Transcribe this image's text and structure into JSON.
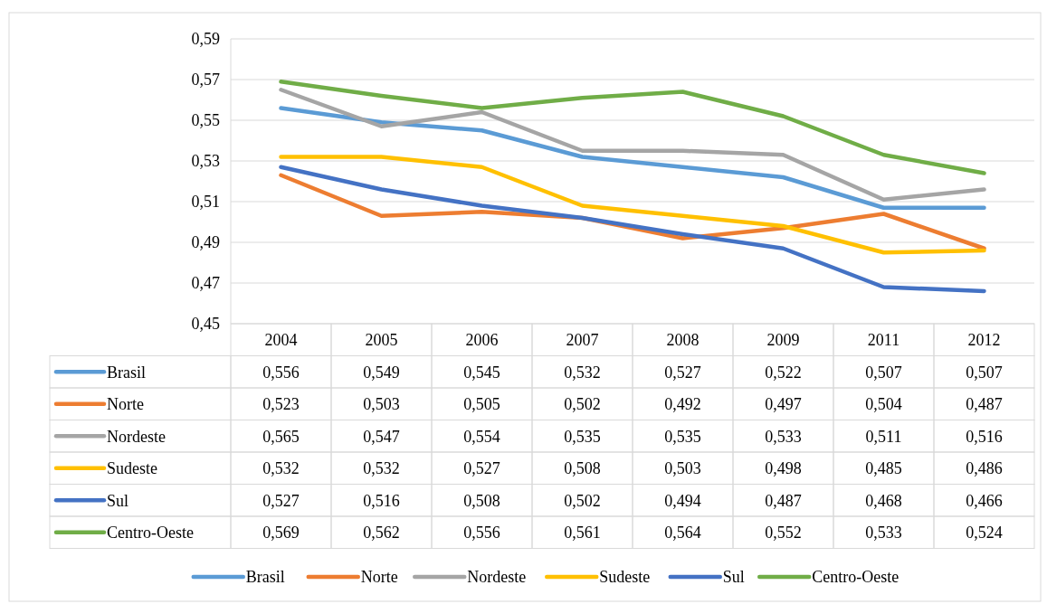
{
  "chart_data": {
    "type": "line",
    "categories": [
      "2004",
      "2005",
      "2006",
      "2007",
      "2008",
      "2009",
      "2011",
      "2012"
    ],
    "ylim": [
      0.45,
      0.59
    ],
    "yticks": [
      {
        "value": 0.45,
        "label": "0,45"
      },
      {
        "value": 0.47,
        "label": "0,47"
      },
      {
        "value": 0.49,
        "label": "0,49"
      },
      {
        "value": 0.51,
        "label": "0,51"
      },
      {
        "value": 0.53,
        "label": "0,53"
      },
      {
        "value": 0.55,
        "label": "0,55"
      },
      {
        "value": 0.57,
        "label": "0,57"
      },
      {
        "value": 0.59,
        "label": "0,59"
      }
    ],
    "grid": "y",
    "legend": "bottom",
    "marker": "none",
    "line_style": "solid",
    "series": [
      {
        "name": "Brasil",
        "color": "#5b9bd5",
        "values": [
          0.556,
          0.549,
          0.545,
          0.532,
          0.527,
          0.522,
          0.507,
          0.507
        ],
        "value_labels": [
          "0,556",
          "0,549",
          "0,545",
          "0,532",
          "0,527",
          "0,522",
          "0,507",
          "0,507"
        ]
      },
      {
        "name": "Norte",
        "color": "#ed7d31",
        "values": [
          0.523,
          0.503,
          0.505,
          0.502,
          0.492,
          0.497,
          0.504,
          0.487
        ],
        "value_labels": [
          "0,523",
          "0,503",
          "0,505",
          "0,502",
          "0,492",
          "0,497",
          "0,504",
          "0,487"
        ]
      },
      {
        "name": "Nordeste",
        "color": "#a5a5a5",
        "values": [
          0.565,
          0.547,
          0.554,
          0.535,
          0.535,
          0.533,
          0.511,
          0.516
        ],
        "value_labels": [
          "0,565",
          "0,547",
          "0,554",
          "0,535",
          "0,535",
          "0,533",
          "0,511",
          "0,516"
        ]
      },
      {
        "name": "Sudeste",
        "color": "#ffc000",
        "values": [
          0.532,
          0.532,
          0.527,
          0.508,
          0.503,
          0.498,
          0.485,
          0.486
        ],
        "value_labels": [
          "0,532",
          "0,532",
          "0,527",
          "0,508",
          "0,503",
          "0,498",
          "0,485",
          "0,486"
        ]
      },
      {
        "name": "Sul",
        "color": "#4472c4",
        "values": [
          0.527,
          0.516,
          0.508,
          0.502,
          0.494,
          0.487,
          0.468,
          0.466
        ],
        "value_labels": [
          "0,527",
          "0,516",
          "0,508",
          "0,502",
          "0,494",
          "0,487",
          "0,468",
          "0,466"
        ]
      },
      {
        "name": "Centro-Oeste",
        "color": "#70ad47",
        "values": [
          0.569,
          0.562,
          0.556,
          0.561,
          0.564,
          0.552,
          0.533,
          0.524
        ],
        "value_labels": [
          "0,569",
          "0,562",
          "0,556",
          "0,561",
          "0,564",
          "0,552",
          "0,533",
          "0,524"
        ]
      }
    ]
  }
}
